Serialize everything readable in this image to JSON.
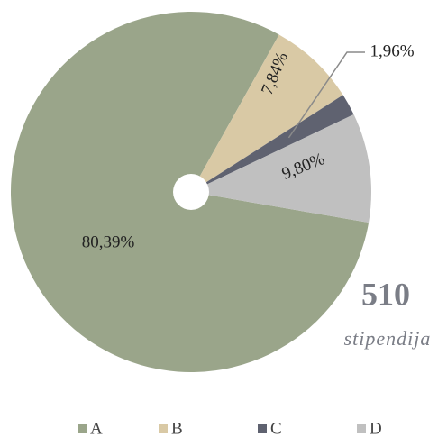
{
  "chart_data": {
    "type": "pie",
    "categories": [
      "A",
      "B",
      "C",
      "D"
    ],
    "values": [
      80.39,
      7.84,
      1.96,
      9.8
    ],
    "value_labels": [
      "80,39%",
      "7,84%",
      "1,96%",
      "9,80%"
    ],
    "colors": [
      "#9aa58a",
      "#d9c9a5",
      "#5f6270",
      "#c0c0c0"
    ],
    "annotations": [
      "510",
      "stipendija"
    ],
    "legend": "bottom"
  }
}
